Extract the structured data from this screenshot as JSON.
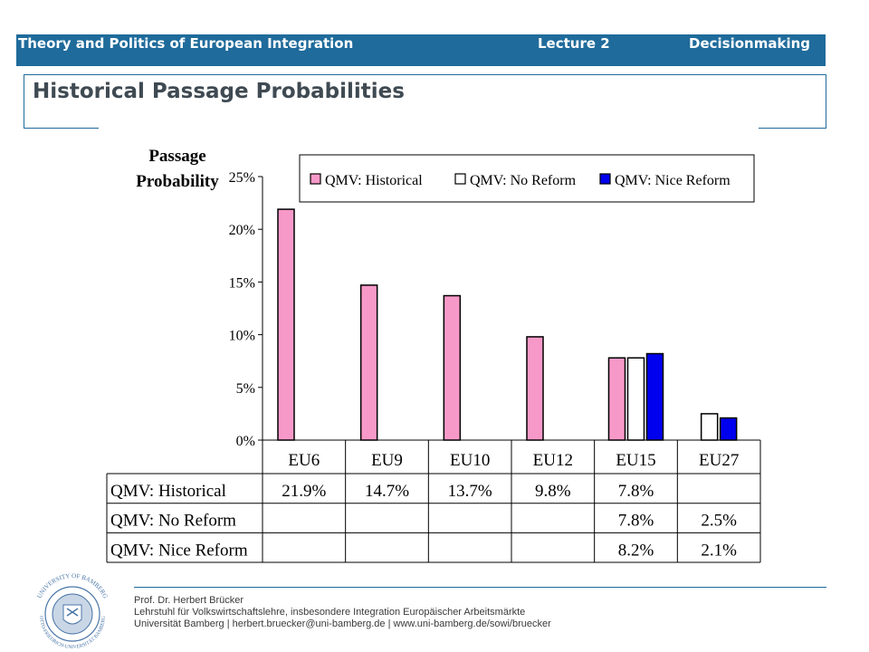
{
  "header": {
    "course": "Theory and Politics of European Integration",
    "lecture": "Lecture 2",
    "topic": "Decisionmaking"
  },
  "slide_title": "Historical Passage Probabilities",
  "chart_data": {
    "type": "bar",
    "ylabel_line1": "Passage",
    "ylabel_line2": "Probability",
    "categories": [
      "EU6",
      "EU9",
      "EU10",
      "EU12",
      "EU15",
      "EU27"
    ],
    "ylim": [
      0,
      25
    ],
    "yticks": [
      0,
      5,
      10,
      15,
      20,
      25
    ],
    "ytick_labels": [
      "0%",
      "5%",
      "10%",
      "15%",
      "20%",
      "25%"
    ],
    "legend_position": "top",
    "grid": false,
    "series": [
      {
        "name": "QMV: Historical",
        "color": "#f799c8",
        "values": [
          21.9,
          14.7,
          13.7,
          9.8,
          7.8,
          null
        ],
        "labels": [
          "21.9%",
          "14.7%",
          "13.7%",
          "9.8%",
          "7.8%",
          ""
        ]
      },
      {
        "name": "QMV: No Reform",
        "color": "#ffffff",
        "values": [
          null,
          null,
          null,
          null,
          7.8,
          2.5
        ],
        "labels": [
          "",
          "",
          "",
          "",
          "7.8%",
          "2.5%"
        ]
      },
      {
        "name": "QMV: Nice Reform",
        "color": "#0000ee",
        "values": [
          null,
          null,
          null,
          null,
          8.2,
          2.1
        ],
        "labels": [
          "",
          "",
          "",
          "",
          "8.2%",
          "2.1%"
        ]
      }
    ]
  },
  "footer": {
    "line1": "Prof. Dr. Herbert Brücker",
    "line2": "Lehrstuhl für Volkswirtschaftslehre, insbesondere Integration Europäischer Arbeitsmärkte",
    "line3": "Universität Bamberg | herbert.bruecker@uni-bamberg.de | www.uni-bamberg.de/sowi/bruecker"
  },
  "seal": {
    "text_top": "UNIVERSITY OF BAMBERG",
    "text_bottom": "OTTO-FRIEDRICH-UNIVERSITÄT BAMBERG"
  }
}
